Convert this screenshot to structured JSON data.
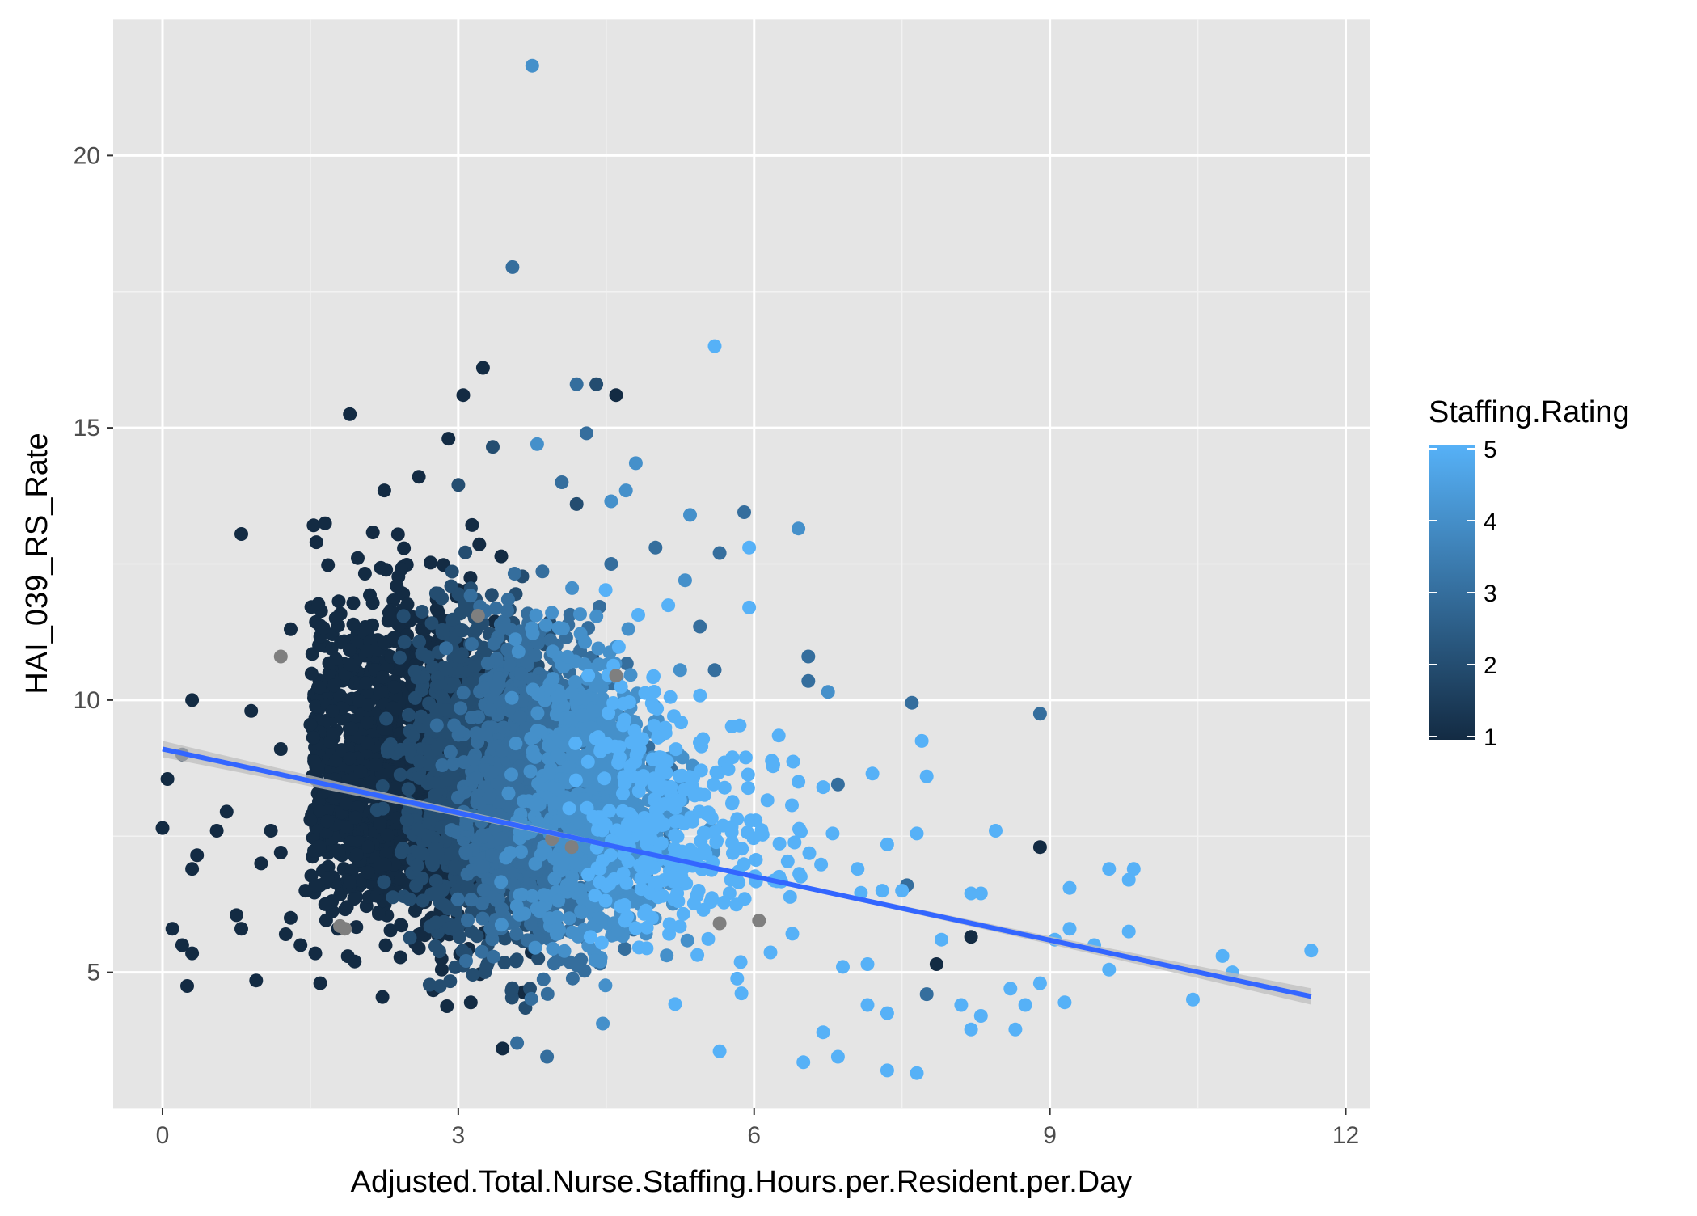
{
  "chart_data": {
    "type": "scatter",
    "title": "",
    "xlabel": "Adjusted.Total.Nurse.Staffing.Hours.per.Resident.per.Day",
    "ylabel": "HAI_039_RS_Rate",
    "xlim": [
      -0.5,
      12.25
    ],
    "ylim": [
      2.5,
      22.5
    ],
    "x_ticks": [
      0,
      3,
      6,
      9,
      12
    ],
    "x_tick_labels": [
      "0",
      "3",
      "6",
      "9",
      "12"
    ],
    "y_ticks": [
      5,
      10,
      15,
      20
    ],
    "y_tick_labels": [
      "5",
      "10",
      "15",
      "20"
    ],
    "grid": true,
    "background": "#e5e5e5",
    "legend": {
      "title": "Staffing.Rating",
      "type": "colorbar",
      "position": "right",
      "low": 1,
      "high": 5,
      "tick_labels": [
        "1",
        "2",
        "3",
        "4",
        "5"
      ],
      "low_color": "#132b43",
      "high_color": "#56b1f7"
    },
    "na_color": "#7f7f7f",
    "trend": {
      "method": "linear",
      "x_range": [
        0,
        11.65
      ],
      "intercept": 9.1,
      "slope": -0.39,
      "ci_halfwidth_ends": 0.15,
      "ci_halfwidth_center": 0.04,
      "line_color": "#3366ff",
      "band_color": "#bebebe"
    },
    "points": [
      [
        3.75,
        21.65,
        4
      ],
      [
        3.55,
        17.95,
        3
      ],
      [
        5.6,
        16.5,
        5
      ],
      [
        1.9,
        15.25,
        1
      ],
      [
        3.25,
        16.1,
        1
      ],
      [
        4.6,
        15.6,
        1
      ],
      [
        4.4,
        15.8,
        2
      ],
      [
        4.2,
        15.8,
        3
      ],
      [
        3.8,
        14.7,
        4
      ],
      [
        4.3,
        14.9,
        3
      ],
      [
        4.8,
        14.35,
        4
      ],
      [
        4.7,
        13.85,
        4
      ],
      [
        5.35,
        13.4,
        4
      ],
      [
        5.9,
        13.45,
        3
      ],
      [
        5.95,
        12.8,
        5
      ],
      [
        5.95,
        11.7,
        5
      ],
      [
        6.45,
        13.15,
        4
      ],
      [
        5.65,
        12.7,
        3
      ],
      [
        6.55,
        10.35,
        3
      ],
      [
        6.55,
        10.8,
        3
      ],
      [
        6.75,
        10.15,
        4
      ],
      [
        7.6,
        9.95,
        3
      ],
      [
        7.7,
        9.25,
        5
      ],
      [
        7.75,
        8.6,
        5
      ],
      [
        8.9,
        9.75,
        3
      ],
      [
        0.8,
        13.05,
        1
      ],
      [
        1.3,
        11.3,
        1
      ],
      [
        1.2,
        10.8,
        0
      ],
      [
        0.3,
        10.0,
        1
      ],
      [
        0.05,
        8.55,
        1
      ],
      [
        0.0,
        7.65,
        1
      ],
      [
        0.2,
        9.0,
        1
      ],
      [
        0.9,
        9.8,
        1
      ],
      [
        1.5,
        9.55,
        1
      ],
      [
        0.1,
        5.8,
        1
      ],
      [
        0.2,
        5.5,
        1
      ],
      [
        0.3,
        5.35,
        1
      ],
      [
        0.3,
        6.9,
        1
      ],
      [
        0.35,
        7.15,
        1
      ],
      [
        0.25,
        4.75,
        1
      ],
      [
        0.95,
        4.85,
        1
      ],
      [
        0.75,
        6.05,
        1
      ],
      [
        0.8,
        5.8,
        1
      ],
      [
        0.55,
        7.6,
        1
      ],
      [
        0.65,
        7.95,
        1
      ],
      [
        1.0,
        7.0,
        1
      ],
      [
        1.1,
        7.6,
        1
      ],
      [
        1.2,
        7.2,
        1
      ],
      [
        1.25,
        5.7,
        1
      ],
      [
        1.3,
        6.0,
        1
      ],
      [
        1.45,
        6.5,
        1
      ],
      [
        1.55,
        6.6,
        1
      ],
      [
        1.55,
        5.35,
        1
      ],
      [
        1.6,
        4.8,
        1
      ],
      [
        1.4,
        5.5,
        1
      ],
      [
        1.65,
        6.25,
        1
      ],
      [
        1.5,
        7.8,
        1
      ],
      [
        1.85,
        5.8,
        0
      ],
      [
        1.95,
        5.2,
        1
      ],
      [
        1.2,
        9.1,
        1
      ],
      [
        2.25,
        13.85,
        1
      ],
      [
        2.6,
        14.1,
        1
      ],
      [
        3.05,
        15.6,
        1
      ],
      [
        3.0,
        13.95,
        2
      ],
      [
        2.9,
        14.8,
        1
      ],
      [
        3.35,
        14.65,
        2
      ],
      [
        4.05,
        14.0,
        3
      ],
      [
        4.2,
        13.6,
        2
      ],
      [
        4.55,
        13.65,
        4
      ],
      [
        4.55,
        12.5,
        3
      ],
      [
        5.0,
        12.8,
        3
      ],
      [
        5.3,
        12.2,
        4
      ],
      [
        5.45,
        11.35,
        3
      ],
      [
        5.25,
        10.55,
        4
      ],
      [
        5.6,
        10.55,
        3
      ],
      [
        6.25,
        9.35,
        5
      ],
      [
        6.45,
        8.5,
        5
      ],
      [
        6.7,
        8.4,
        5
      ],
      [
        6.85,
        8.45,
        3
      ],
      [
        7.2,
        8.65,
        5
      ],
      [
        7.65,
        7.55,
        5
      ],
      [
        7.55,
        6.6,
        3
      ],
      [
        8.45,
        7.6,
        5
      ],
      [
        8.9,
        7.3,
        1
      ],
      [
        8.2,
        6.45,
        5
      ],
      [
        8.3,
        6.45,
        5
      ],
      [
        8.2,
        5.65,
        1
      ],
      [
        7.85,
        5.15,
        1
      ],
      [
        7.75,
        4.6,
        3
      ],
      [
        8.1,
        4.4,
        5
      ],
      [
        8.2,
        3.95,
        5
      ],
      [
        8.3,
        4.2,
        5
      ],
      [
        8.6,
        4.7,
        5
      ],
      [
        8.75,
        4.4,
        5
      ],
      [
        8.65,
        3.95,
        5
      ],
      [
        8.9,
        4.8,
        5
      ],
      [
        9.05,
        5.6,
        5
      ],
      [
        9.2,
        5.8,
        5
      ],
      [
        9.2,
        6.55,
        5
      ],
      [
        9.15,
        4.45,
        5
      ],
      [
        9.45,
        5.5,
        5
      ],
      [
        9.6,
        6.9,
        5
      ],
      [
        9.6,
        5.05,
        5
      ],
      [
        9.8,
        6.7,
        5
      ],
      [
        9.85,
        6.9,
        5
      ],
      [
        9.8,
        5.75,
        5
      ],
      [
        10.45,
        4.5,
        5
      ],
      [
        10.75,
        5.3,
        5
      ],
      [
        10.85,
        5.0,
        5
      ],
      [
        11.65,
        5.4,
        5
      ],
      [
        7.35,
        3.2,
        5
      ],
      [
        7.65,
        3.15,
        5
      ],
      [
        7.35,
        4.25,
        5
      ],
      [
        7.15,
        4.4,
        5
      ],
      [
        6.85,
        3.45,
        5
      ],
      [
        6.5,
        3.35,
        5
      ],
      [
        6.7,
        3.9,
        5
      ],
      [
        5.65,
        3.55,
        5
      ],
      [
        3.9,
        3.45,
        3
      ],
      [
        3.45,
        3.6,
        1
      ],
      [
        7.15,
        5.15,
        5
      ],
      [
        6.9,
        5.1,
        5
      ],
      [
        7.05,
        6.9,
        5
      ],
      [
        7.3,
        6.5,
        5
      ],
      [
        7.5,
        6.5,
        5
      ],
      [
        7.9,
        5.6,
        5
      ],
      [
        7.35,
        7.35,
        5
      ],
      [
        6.05,
        5.95,
        0
      ],
      [
        5.65,
        5.9,
        0
      ],
      [
        4.6,
        10.45,
        0
      ],
      [
        4.15,
        7.3,
        0
      ],
      [
        3.95,
        7.45,
        0
      ],
      [
        3.2,
        11.55,
        0
      ],
      [
        1.8,
        5.85,
        0
      ]
    ]
  }
}
